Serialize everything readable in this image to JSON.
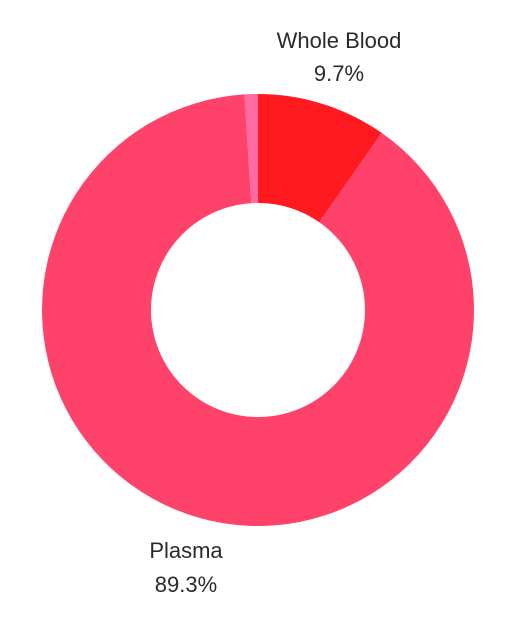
{
  "chart_data": {
    "type": "pie",
    "donut": true,
    "title": "",
    "slices": [
      {
        "label": "Whole Blood",
        "percent_text": "9.7%",
        "value": 9.7,
        "color": "#ff1a1f",
        "show_label": true
      },
      {
        "label": "Plasma",
        "percent_text": "89.3%",
        "value": 89.3,
        "color": "#ff426a",
        "show_label": true
      },
      {
        "label": "",
        "percent_text": "",
        "value": 1.0,
        "color": "#ff6aa4",
        "show_label": false
      }
    ]
  }
}
